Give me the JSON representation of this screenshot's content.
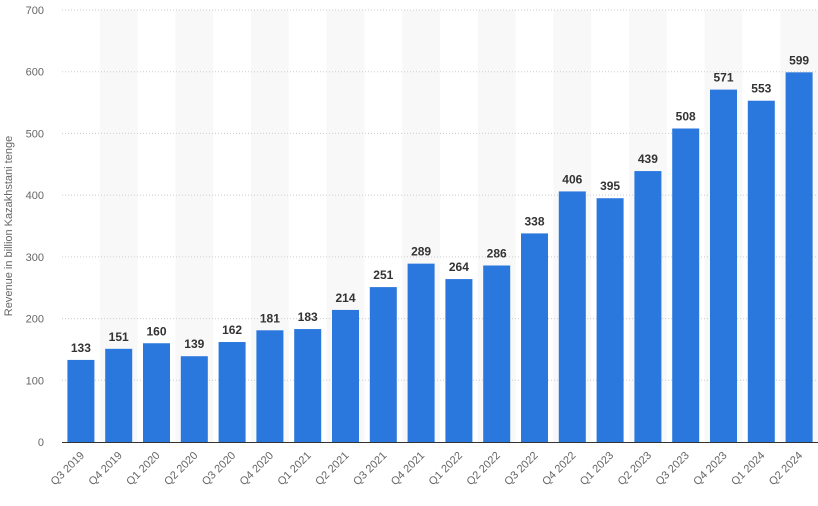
{
  "chart_data": {
    "type": "bar",
    "ylabel": "Revenue in billion Kazakhstani tenge",
    "ylim": [
      0,
      700
    ],
    "yticks": [
      0,
      100,
      200,
      300,
      400,
      500,
      600,
      700
    ],
    "grid": true,
    "categories": [
      "Q3 2019",
      "Q4 2019",
      "Q1 2020",
      "Q2 2020",
      "Q3 2020",
      "Q4 2020",
      "Q1 2021",
      "Q2 2021",
      "Q3 2021",
      "Q4 2021",
      "Q1 2022",
      "Q2 2022",
      "Q3 2022",
      "Q4 2022",
      "Q1 2023",
      "Q2 2023",
      "Q3 2023",
      "Q4 2023",
      "Q1 2024",
      "Q2 2024"
    ],
    "values": [
      133,
      151,
      160,
      139,
      162,
      181,
      183,
      214,
      251,
      289,
      264,
      286,
      338,
      406,
      395,
      439,
      508,
      571,
      553,
      599
    ],
    "bar_color": "#2a77dd",
    "stripe_color": "#f8f8f8"
  }
}
